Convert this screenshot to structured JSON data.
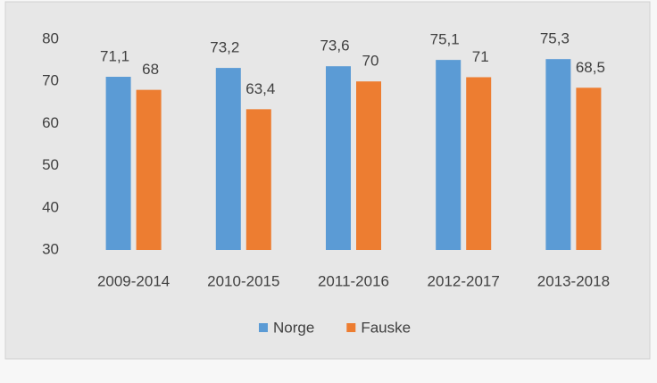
{
  "chart_data": {
    "type": "bar",
    "categories": [
      "2009-2014",
      "2010-2015",
      "2011-2016",
      "2012-2017",
      "2013-2018"
    ],
    "series": [
      {
        "name": "Norge",
        "color": "#5b9bd5",
        "values": [
          71.1,
          73.2,
          73.6,
          75.1,
          75.3
        ],
        "value_labels": [
          "71,1",
          "73,2",
          "73,6",
          "75,1",
          "75,3"
        ]
      },
      {
        "name": "Fauske",
        "color": "#ed7d31",
        "values": [
          68,
          63.4,
          70,
          71,
          68.5
        ],
        "value_labels": [
          "68",
          "63,4",
          "70",
          "71",
          "68,5"
        ]
      }
    ],
    "ylim": [
      30,
      80
    ],
    "yticks": [
      30,
      40,
      50,
      60,
      70,
      80
    ],
    "grid": false,
    "legend": "bottom"
  }
}
